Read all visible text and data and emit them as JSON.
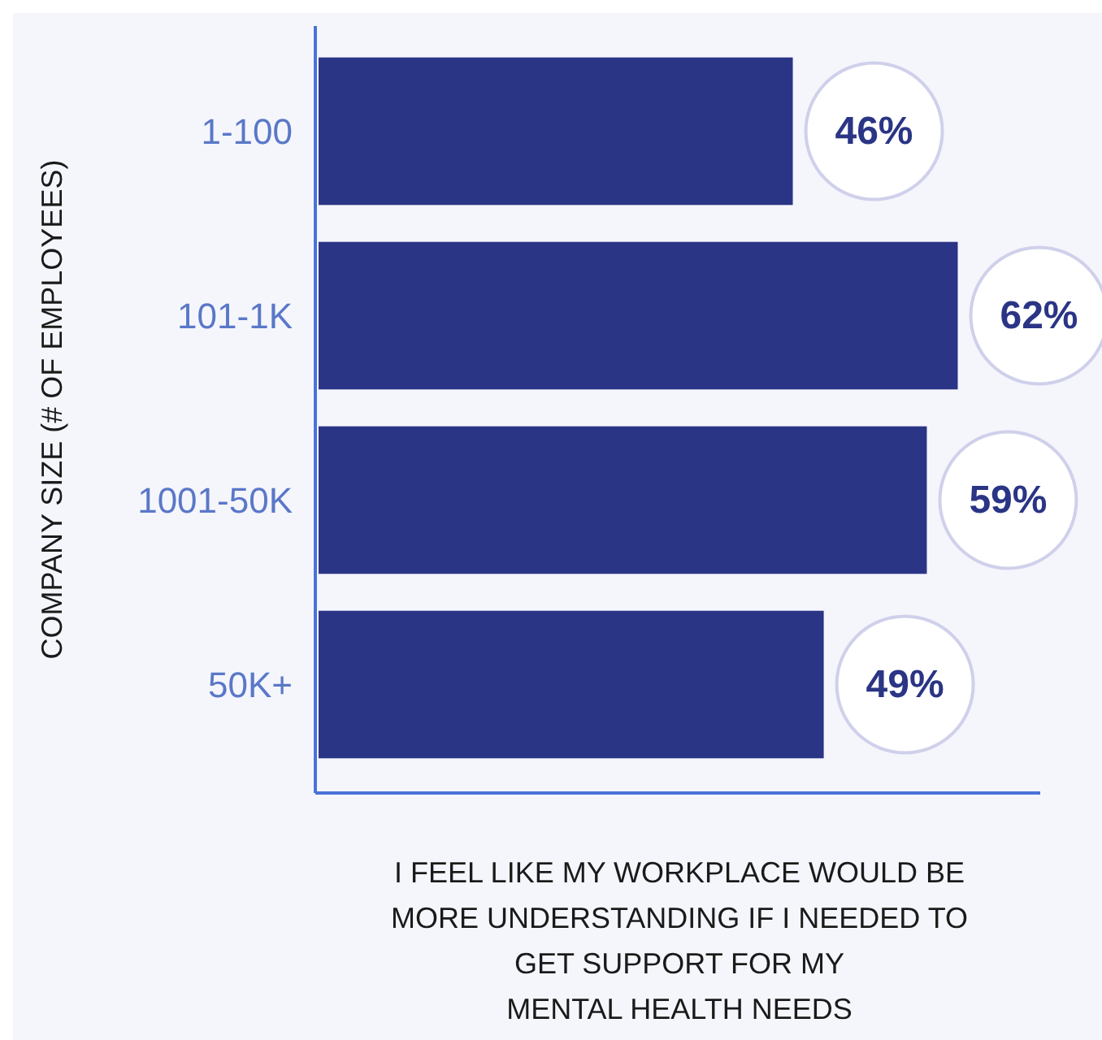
{
  "chart_data": {
    "type": "bar",
    "orientation": "horizontal",
    "categories": [
      "1-100",
      "101-1K",
      "1001-50K",
      "50K+"
    ],
    "values": [
      46,
      62,
      59,
      49
    ],
    "value_labels": [
      "46%",
      "62%",
      "59%",
      "49%"
    ],
    "color": "#2b3585",
    "xlim": [
      0,
      70
    ],
    "tick_labels": "y",
    "ylabel": "COMPANY SIZE (# OF EMPLOYEES)",
    "xlabel": "I FEEL LIKE MY WORKPLACE WOULD BE\nMORE UNDERSTANDING IF I NEEDED TO\nGET SUPPORT FOR MY\nMENTAL HEALTH NEEDS"
  }
}
